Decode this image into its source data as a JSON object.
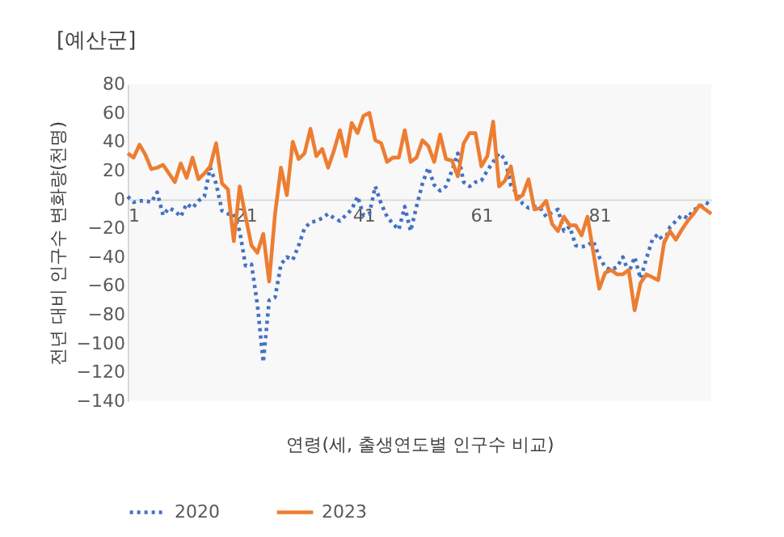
{
  "chart_data": {
    "type": "line",
    "title": "[예산군]",
    "xlabel": "연령(세, 출생연도별 인구수 비교)",
    "ylabel": "전년 대비 인구수 변화량(천명)",
    "x": [
      1,
      2,
      3,
      4,
      5,
      6,
      7,
      8,
      9,
      10,
      11,
      12,
      13,
      14,
      15,
      16,
      17,
      18,
      19,
      20,
      21,
      22,
      23,
      24,
      25,
      26,
      27,
      28,
      29,
      30,
      31,
      32,
      33,
      34,
      35,
      36,
      37,
      38,
      39,
      40,
      41,
      42,
      43,
      44,
      45,
      46,
      47,
      48,
      49,
      50,
      51,
      52,
      53,
      54,
      55,
      56,
      57,
      58,
      59,
      60,
      61,
      62,
      63,
      64,
      65,
      66,
      67,
      68,
      69,
      70,
      71,
      72,
      73,
      74,
      75,
      76,
      77,
      78,
      79,
      80,
      81,
      82,
      83,
      84,
      85,
      86,
      87,
      88,
      89,
      90,
      91,
      92,
      93,
      94,
      95,
      96,
      97,
      98,
      99,
      100
    ],
    "xlim": [
      1,
      100
    ],
    "xticks": [
      1,
      21,
      41,
      61,
      81
    ],
    "ylim": [
      -140,
      80
    ],
    "yticks": [
      -140,
      -120,
      -100,
      -80,
      -60,
      -40,
      -20,
      0,
      20,
      40,
      60,
      80
    ],
    "legend": "bottom",
    "marker": "none",
    "series": [
      {
        "name": "2020",
        "color": "#4472c4",
        "line_style": "dotted",
        "values": [
          2,
          -2,
          -1,
          -1,
          -2,
          5,
          -11,
          -6,
          -8,
          -12,
          -3,
          -6,
          -1,
          2,
          22,
          11,
          -8,
          -10,
          -10,
          -22,
          -46,
          -45,
          -73,
          -113,
          -70,
          -68,
          -45,
          -40,
          -42,
          -32,
          -20,
          -16,
          -15,
          -13,
          -10,
          -13,
          -15,
          -11,
          -7,
          2,
          -11,
          -10,
          9,
          -3,
          -12,
          -17,
          -21,
          -5,
          -22,
          -5,
          11,
          22,
          10,
          6,
          9,
          20,
          32,
          12,
          9,
          12,
          13,
          20,
          26,
          32,
          28,
          10,
          4,
          -3,
          -6,
          -5,
          -6,
          -12,
          -9,
          -7,
          -22,
          -19,
          -32,
          -33,
          -32,
          -29,
          -40,
          -47,
          -49,
          -47,
          -40,
          -51,
          -40,
          -55,
          -41,
          -28,
          -24,
          -30,
          -19,
          -15,
          -11,
          -13,
          -7,
          -6,
          -2,
          -4
        ]
      },
      {
        "name": "2023",
        "color": "#ed7d31",
        "line_style": "solid",
        "values": [
          32,
          29,
          38,
          31,
          21,
          22,
          24,
          18,
          12,
          25,
          15,
          29,
          14,
          18,
          23,
          39,
          11,
          7,
          -29,
          9,
          -12,
          -32,
          -37,
          -24,
          -57,
          -10,
          22,
          3,
          40,
          28,
          32,
          49,
          30,
          35,
          22,
          34,
          48,
          30,
          53,
          46,
          58,
          60,
          41,
          39,
          26,
          29,
          29,
          48,
          26,
          29,
          41,
          37,
          26,
          45,
          28,
          27,
          16,
          39,
          46,
          46,
          23,
          30,
          54,
          9,
          13,
          23,
          0,
          3,
          14,
          -7,
          -6,
          -1,
          -17,
          -22,
          -12,
          -18,
          -18,
          -25,
          -12,
          -37,
          -62,
          -51,
          -49,
          -52,
          -52,
          -49,
          -77,
          -58,
          -52,
          -54,
          -56,
          -30,
          -22,
          -28,
          -21,
          -15,
          -10,
          -4,
          -7,
          -10
        ]
      }
    ]
  }
}
